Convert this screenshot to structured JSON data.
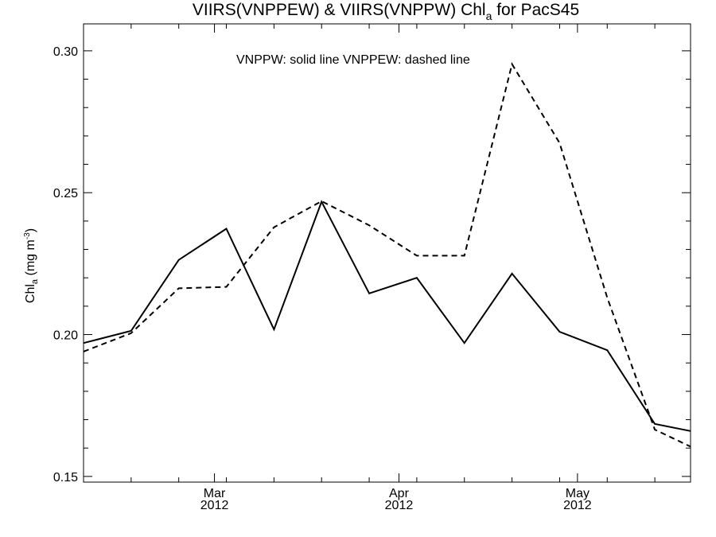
{
  "chart_data": {
    "type": "line",
    "title": {
      "prefix": "VIIRS(VNPPEW) & VIIRS(VNPPW)  Chl",
      "subscript": "a",
      "suffix": " for PacS45"
    },
    "ylabel": {
      "prefix": "Chl",
      "subscript": "a",
      "middle": " (mg m",
      "superscript": "-3",
      "suffix": ")"
    },
    "annotation": "VNPPW: solid line   VNPPEW: dashed line",
    "x_tick_labels": [
      {
        "month": "Mar",
        "year": "2012",
        "date": "2012-03-01"
      },
      {
        "month": "Apr",
        "year": "2012",
        "date": "2012-04-01"
      },
      {
        "month": "May",
        "year": "2012",
        "date": "2012-05-01"
      }
    ],
    "xlim": [
      "2012-02-08",
      "2012-05-20"
    ],
    "ylim": [
      0.148,
      0.3095
    ],
    "y_major_ticks": [
      0.15,
      0.2,
      0.25,
      0.3
    ],
    "y_tick_labels": [
      "0.15",
      "0.20",
      "0.25",
      "0.30"
    ],
    "grid": false,
    "series": [
      {
        "name": "VNPPW",
        "style": "solid",
        "color": "#000000",
        "x": [
          "2012-02-08",
          "2012-02-16",
          "2012-02-24",
          "2012-03-03",
          "2012-03-11",
          "2012-03-19",
          "2012-03-27",
          "2012-04-04",
          "2012-04-12",
          "2012-04-20",
          "2012-04-28",
          "2012-05-06",
          "2012-05-14",
          "2012-05-20"
        ],
        "y": [
          0.197,
          0.2013,
          0.2263,
          0.2373,
          0.2018,
          0.2468,
          0.2145,
          0.22,
          0.197,
          0.2215,
          0.201,
          0.1945,
          0.1685,
          0.166
        ]
      },
      {
        "name": "VNPPEW",
        "style": "dashed",
        "color": "#000000",
        "x": [
          "2012-02-08",
          "2012-02-16",
          "2012-02-24",
          "2012-03-03",
          "2012-03-11",
          "2012-03-19",
          "2012-03-27",
          "2012-04-04",
          "2012-04-12",
          "2012-04-20",
          "2012-04-28",
          "2012-05-06",
          "2012-05-14",
          "2012-05-20"
        ],
        "y": [
          0.194,
          0.2005,
          0.2163,
          0.2168,
          0.2378,
          0.247,
          0.2385,
          0.2278,
          0.2278,
          0.2953,
          0.2675,
          0.213,
          0.1665,
          0.1605
        ]
      }
    ]
  }
}
